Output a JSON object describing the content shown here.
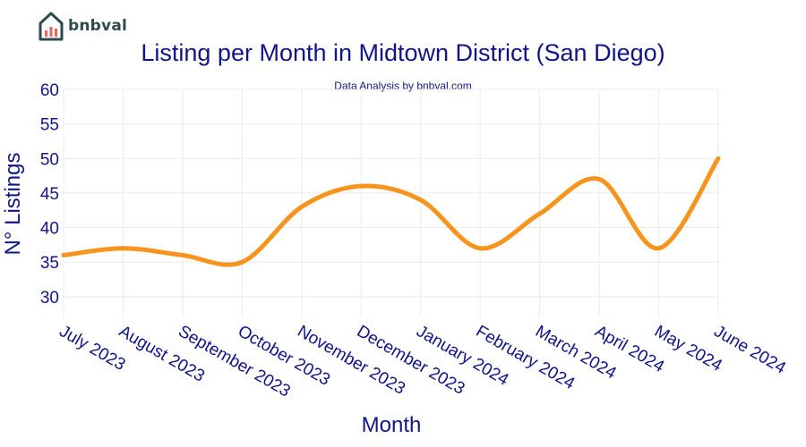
{
  "logo": {
    "text": "bnbval",
    "icon": "house-chart-logo-icon",
    "colors": {
      "house": "#2f4a4e",
      "accent": "#e8645a"
    }
  },
  "chart_data": {
    "type": "line",
    "title": "Listing per Month in Midtown District (San Diego)",
    "subtitle": "Data Analysis by bnbval.com",
    "xlabel": "Month",
    "ylabel": "N° Listings",
    "categories": [
      "July 2023",
      "August 2023",
      "September 2023",
      "October 2023",
      "November 2023",
      "December 2023",
      "January 2024",
      "February 2024",
      "March 2024",
      "April 2024",
      "May 2024",
      "June 2024"
    ],
    "series": [
      {
        "values": [
          36,
          37,
          36,
          35,
          43,
          46,
          44,
          37,
          42,
          47,
          37,
          50
        ],
        "color": "#f7941d"
      }
    ],
    "ylim": [
      27,
      60
    ],
    "yticks": [
      30,
      35,
      40,
      45,
      50,
      55,
      60
    ],
    "grid": true,
    "smooth": true,
    "legend": false
  }
}
